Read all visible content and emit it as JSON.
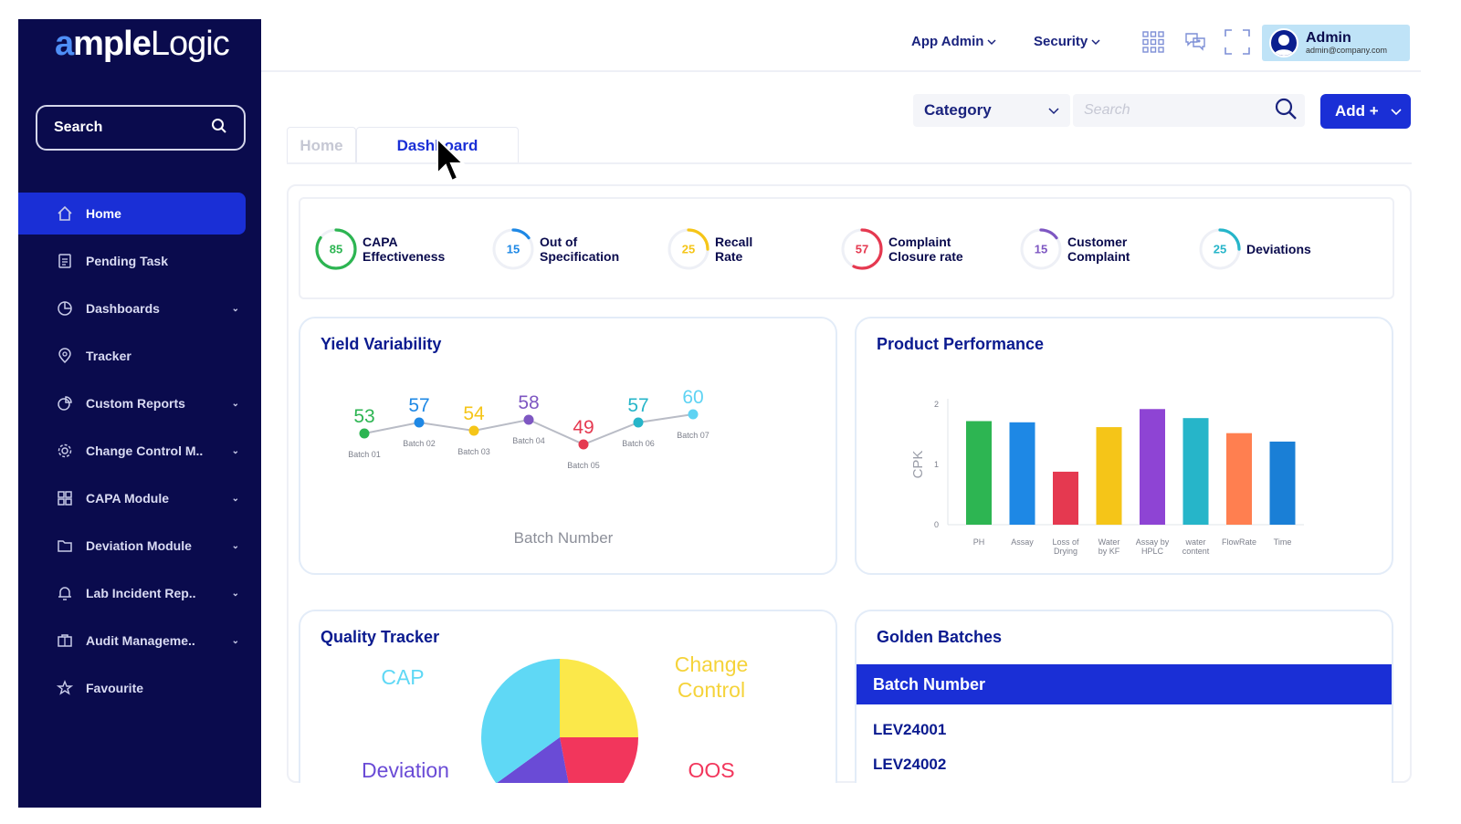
{
  "brand": {
    "logo_a": "a",
    "logo_mple": "mple",
    "logo_logic": "Logic"
  },
  "sidebar": {
    "search_label": "Search",
    "items": [
      {
        "label": "Home",
        "icon": "home-icon",
        "active": true,
        "chevron": false
      },
      {
        "label": "Pending Task",
        "icon": "clipboard-icon",
        "chevron": false
      },
      {
        "label": "Dashboards",
        "icon": "pie-chart-icon",
        "chevron": true
      },
      {
        "label": "Tracker",
        "icon": "map-pin-icon",
        "chevron": false
      },
      {
        "label": "Custom Reports",
        "icon": "report-icon",
        "chevron": true
      },
      {
        "label": "Change Control M..",
        "icon": "gear-icon",
        "chevron": true
      },
      {
        "label": "CAPA Module",
        "icon": "grid-icon",
        "chevron": true
      },
      {
        "label": "Deviation Module",
        "icon": "folder-icon",
        "chevron": true
      },
      {
        "label": "Lab Incident Rep..",
        "icon": "bell-icon",
        "chevron": true
      },
      {
        "label": "Audit Manageme..",
        "icon": "briefcase-icon",
        "chevron": true
      },
      {
        "label": "Favourite",
        "icon": "star-icon",
        "chevron": false
      }
    ]
  },
  "header": {
    "app_admin": "App Admin",
    "security": "Security",
    "user_name": "Admin",
    "user_email": "admin@company.com"
  },
  "toolbar": {
    "category_label": "Category",
    "search_placeholder": "Search",
    "add_label": "Add +"
  },
  "tabs": [
    {
      "label": "Home"
    },
    {
      "label": "Dashboard"
    }
  ],
  "kpis": [
    {
      "value": "85",
      "label_1": "CAPA",
      "label_2": "Effectiveness",
      "color": "#2db552",
      "fraction": 0.85
    },
    {
      "value": "15",
      "label_1": "Out of",
      "label_2": "Specification",
      "color": "#1e88e5",
      "fraction": 0.15
    },
    {
      "value": "25",
      "label_1": "Recall",
      "label_2": "Rate",
      "color": "#f5c518",
      "fraction": 0.25
    },
    {
      "value": "57",
      "label_1": "Complaint",
      "label_2": "Closure rate",
      "color": "#e53950",
      "fraction": 0.57
    },
    {
      "value": "15",
      "label_1": "Customer",
      "label_2": "Complaint",
      "color": "#7e57c2",
      "fraction": 0.15
    },
    {
      "value": "25",
      "label_1": "Deviations",
      "label_2": "",
      "color": "#26b5c9",
      "fraction": 0.25
    }
  ],
  "cards": {
    "yield_title": "Yield Variability",
    "product_title": "Product Performance",
    "quality_title": "Quality Tracker",
    "golden_title": "Golden Batches"
  },
  "golden": {
    "header": "Batch Number",
    "rows": [
      "LEV24001",
      "LEV24002"
    ]
  },
  "chart_data": [
    {
      "type": "line",
      "title": "Yield Variability",
      "xlabel": "Batch Number",
      "categories": [
        "Batch 01",
        "Batch 02",
        "Batch 03",
        "Batch 04",
        "Batch 05",
        "Batch 06",
        "Batch 07"
      ],
      "values": [
        53,
        57,
        54,
        58,
        49,
        57,
        60
      ],
      "colors": [
        "#2db552",
        "#1e88e5",
        "#f5c518",
        "#7e57c2",
        "#e53950",
        "#26b5c9",
        "#5ed3f3"
      ]
    },
    {
      "type": "bar",
      "title": "Product Performance",
      "ylabel": "CPK",
      "ylim": [
        0,
        2
      ],
      "yticks": [
        "0",
        "1",
        "2"
      ],
      "categories": [
        [
          "PH"
        ],
        [
          "Assay"
        ],
        [
          "Loss of",
          "Drying"
        ],
        [
          "Water",
          "by KF"
        ],
        [
          "Assay by",
          "HPLC"
        ],
        [
          "water",
          "content"
        ],
        [
          "FlowRate"
        ],
        [
          "Time"
        ]
      ],
      "values": [
        1.72,
        1.7,
        0.88,
        1.62,
        1.92,
        1.77,
        1.52,
        1.38
      ],
      "colors": [
        "#2db552",
        "#1e88e5",
        "#e53950",
        "#f5c518",
        "#8e44d4",
        "#26b5c9",
        "#ff7f50",
        "#1a7fd6"
      ]
    },
    {
      "type": "pie",
      "title": "Quality Tracker",
      "labels": [
        "Change Control",
        "OOS",
        "Deviation",
        "CAP"
      ],
      "label_lines": [
        [
          "Change",
          "Control"
        ],
        [
          "OOS"
        ],
        [
          "Deviation"
        ],
        [
          "CAP"
        ]
      ],
      "values": [
        25,
        22,
        18,
        35
      ],
      "colors": [
        "#fbe84a",
        "#f2365c",
        "#6a4bd6",
        "#5fd8f5"
      ]
    }
  ]
}
